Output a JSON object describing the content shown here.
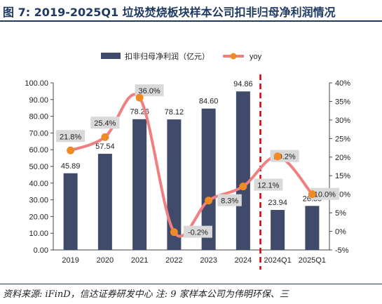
{
  "figure": {
    "title": "图 7:  2019-2025Q1 垃圾焚烧板块样本公司扣非归母净利润情况",
    "source": "资料来源: iFinD，信达证券研发中心   注: 9 家样本公司为伟明环保、三"
  },
  "chart_data": {
    "type": "bar",
    "categories": [
      "2019",
      "2020",
      "2021",
      "2022",
      "2023",
      "2024",
      "2024Q1",
      "2025Q1"
    ],
    "series": [
      {
        "name": "扣非归母净利润（亿元）",
        "type": "bar",
        "axis": "left",
        "values": [
          45.89,
          57.54,
          78.26,
          78.12,
          84.6,
          94.86,
          23.94,
          26.35
        ],
        "labels": [
          "45.89",
          "57.54",
          "78.26",
          "78.12",
          "84.60",
          "94.86",
          "23.94",
          "26.35"
        ],
        "color": "#404a6b"
      },
      {
        "name": "yoy",
        "type": "line",
        "smooth": true,
        "axis": "right",
        "values": [
          21.8,
          25.4,
          36.0,
          -0.2,
          8.3,
          12.1,
          20.2,
          10.0
        ],
        "labels": [
          "21.8%",
          "25.4%",
          "36.0%",
          "-0.2%",
          "8.3%",
          "12.1%",
          "20.2%",
          "10.0%"
        ],
        "color": "#f08080",
        "marker_color": "#f08a24"
      }
    ],
    "left_axis": {
      "min": 0,
      "max": 100,
      "step": 10,
      "tick_labels": [
        "0.00",
        "10.00",
        "20.00",
        "30.00",
        "40.00",
        "50.00",
        "60.00",
        "70.00",
        "80.00",
        "90.00",
        "100.00"
      ]
    },
    "right_axis": {
      "min": -5,
      "max": 40,
      "step": 5,
      "tick_labels": [
        "-5%",
        "0%",
        "5%",
        "10%",
        "15%",
        "20%",
        "25%",
        "30%",
        "35%",
        "40%"
      ]
    },
    "legend_position": "top",
    "grid": false,
    "annotations": [
      "dashed red vertical divider between 2024 and 2024Q1"
    ]
  }
}
